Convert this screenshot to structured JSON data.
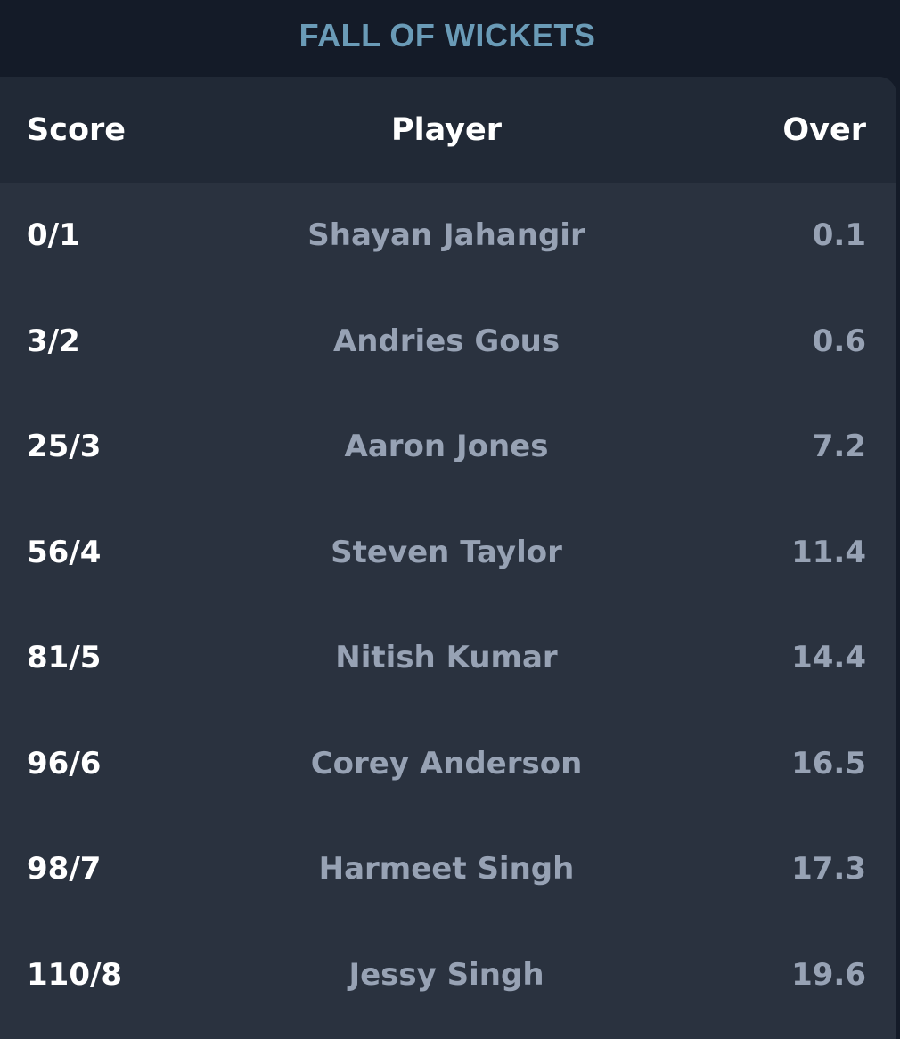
{
  "section": {
    "title": "FALL OF WICKETS"
  },
  "table": {
    "headers": {
      "score": "Score",
      "player": "Player",
      "over": "Over"
    },
    "rows": [
      {
        "score": "0/1",
        "player": "Shayan Jahangir",
        "over": "0.1"
      },
      {
        "score": "3/2",
        "player": "Andries Gous",
        "over": "0.6"
      },
      {
        "score": "25/3",
        "player": "Aaron Jones",
        "over": "7.2"
      },
      {
        "score": "56/4",
        "player": "Steven Taylor",
        "over": "11.4"
      },
      {
        "score": "81/5",
        "player": "Nitish Kumar",
        "over": "14.4"
      },
      {
        "score": "96/6",
        "player": "Corey Anderson",
        "over": "16.5"
      },
      {
        "score": "98/7",
        "player": "Harmeet Singh",
        "over": "17.3"
      },
      {
        "score": "110/8",
        "player": "Jessy Singh",
        "over": "19.6"
      }
    ]
  },
  "colors": {
    "background": "#141b28",
    "card": "#2a323f",
    "header": "#212936",
    "title": "#6a9bb7",
    "muted_text": "#97a2b4",
    "primary_text": "#ffffff"
  }
}
